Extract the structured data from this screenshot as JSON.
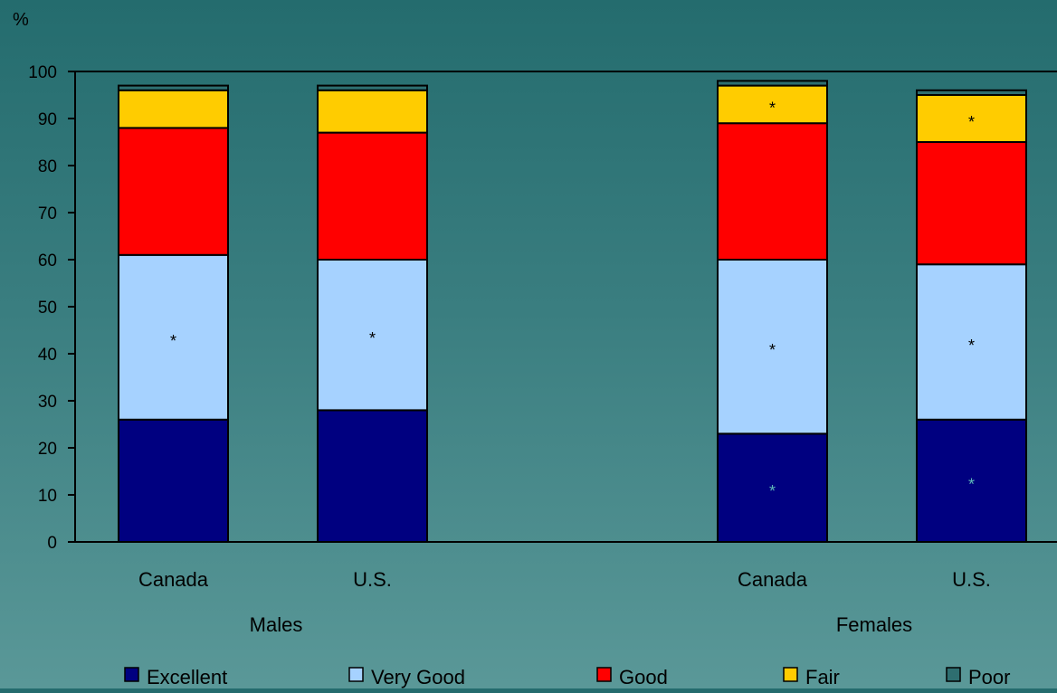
{
  "chart_data": {
    "type": "bar",
    "stacked": true,
    "y_unit_label": "%",
    "ylim": [
      0,
      100
    ],
    "yticks": [
      0,
      10,
      20,
      30,
      40,
      50,
      60,
      70,
      80,
      90,
      100
    ],
    "groups": [
      {
        "label": "Males",
        "categories": [
          "Canada",
          "U.S."
        ]
      },
      {
        "label": "Females",
        "categories": [
          "Canada",
          "U.S."
        ]
      }
    ],
    "bars": [
      {
        "group": "Males",
        "category": "Canada",
        "values": [
          26,
          35,
          27,
          8,
          1
        ],
        "marks": [
          "",
          "*",
          "",
          "",
          ""
        ]
      },
      {
        "group": "Males",
        "category": "U.S.",
        "values": [
          28,
          32,
          27,
          9,
          1
        ],
        "marks": [
          "",
          "*",
          "",
          "",
          ""
        ]
      },
      {
        "group": "Females",
        "category": "Canada",
        "values": [
          23,
          37,
          29,
          8,
          1
        ],
        "marks": [
          "*",
          "*",
          "",
          "*",
          ""
        ]
      },
      {
        "group": "Females",
        "category": "U.S.",
        "values": [
          26,
          33,
          26,
          10,
          1
        ],
        "marks": [
          "*",
          "*",
          "",
          "*",
          ""
        ]
      }
    ],
    "series": [
      {
        "name": "Excellent",
        "color": "#000080"
      },
      {
        "name": "Very Good",
        "color": "#a6d2ff"
      },
      {
        "name": "Good",
        "color": "#ff0000"
      },
      {
        "name": "Fair",
        "color": "#ffcc00"
      },
      {
        "name": "Poor",
        "color": "#2e6e70"
      }
    ],
    "legend_position": "bottom",
    "grid": false
  }
}
